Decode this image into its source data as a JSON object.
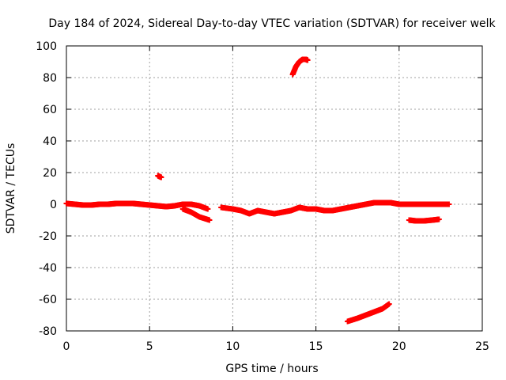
{
  "chart_data": {
    "type": "scatter",
    "title": "Day 184 of 2024, Sidereal Day-to-day VTEC variation (SDTVAR) for receiver welk",
    "xlabel": "GPS time / hours",
    "ylabel": "SDTVAR / TECUs",
    "xlim": [
      0,
      25
    ],
    "ylim": [
      -80,
      100
    ],
    "xticks": [
      0,
      5,
      10,
      15,
      20,
      25
    ],
    "yticks": [
      -80,
      -60,
      -40,
      -20,
      0,
      20,
      40,
      60,
      80,
      100
    ],
    "grid": true,
    "marker": "+",
    "point_color": "#ff0000",
    "series": [
      {
        "name": "main-near-zero",
        "x": [
          0,
          0.5,
          1,
          1.5,
          2,
          2.5,
          3,
          3.5,
          4,
          4.5,
          5,
          5.5,
          6,
          6.5,
          7,
          7.5,
          8,
          8.5
        ],
        "y": [
          0.5,
          0,
          -0.5,
          -0.5,
          0,
          0,
          0.5,
          0.5,
          0.5,
          0,
          -0.5,
          -1,
          -1.5,
          -1,
          0,
          0,
          -1,
          -3
        ]
      },
      {
        "name": "branch-7-8h",
        "x": [
          7.0,
          7.5,
          8.0,
          8.6
        ],
        "y": [
          -3,
          -5,
          -8,
          -10
        ]
      },
      {
        "name": "isolated-5.7h",
        "x": [
          5.5,
          5.7
        ],
        "y": [
          18,
          17
        ]
      },
      {
        "name": "mid-segment",
        "x": [
          9.3,
          10,
          10.5,
          11,
          11.5,
          12,
          12.5,
          13,
          13.5,
          14,
          14.5,
          15,
          15.5,
          16,
          16.5,
          17,
          17.5,
          18,
          18.5,
          19,
          19.5,
          20,
          20.5,
          21,
          21.5,
          22,
          22.5,
          23
        ],
        "y": [
          -2,
          -3,
          -4,
          -6,
          -4,
          -5,
          -6,
          -5,
          -4,
          -2,
          -3,
          -3,
          -4,
          -4,
          -3,
          -2,
          -1,
          0,
          1,
          1,
          1,
          0,
          0,
          0,
          0,
          0,
          0,
          0
        ]
      },
      {
        "name": "lower-branch-21h",
        "x": [
          20.6,
          21,
          21.5,
          22,
          22.4
        ],
        "y": [
          -10,
          -10.5,
          -10.5,
          -10,
          -9.5
        ]
      },
      {
        "name": "high-arc",
        "x": [
          13.6,
          13.8,
          14,
          14.2,
          14.4,
          14.5
        ],
        "y": [
          82,
          87,
          90,
          91.5,
          91.5,
          91
        ]
      },
      {
        "name": "low-ramp",
        "x": [
          16.9,
          17.5,
          18,
          18.5,
          19,
          19.4
        ],
        "y": [
          -74,
          -72,
          -70,
          -68,
          -66,
          -63
        ]
      }
    ]
  }
}
